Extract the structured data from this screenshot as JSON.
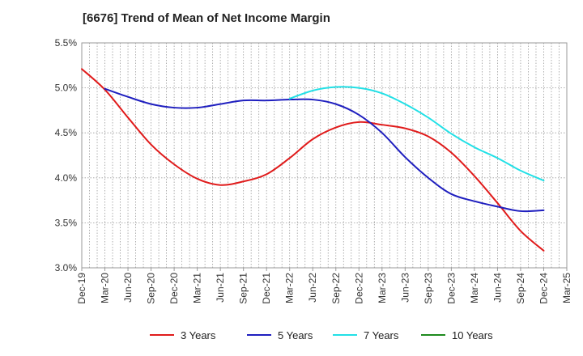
{
  "chart_data": {
    "type": "line",
    "title": "[6676]  Trend of Mean of Net Income Margin",
    "xlabel": "",
    "ylabel": "",
    "x_ticks": [
      "Dec-19",
      "Mar-20",
      "Jun-20",
      "Sep-20",
      "Dec-20",
      "Mar-21",
      "Jun-21",
      "Sep-21",
      "Dec-21",
      "Mar-22",
      "Jun-22",
      "Sep-22",
      "Dec-22",
      "Mar-23",
      "Jun-23",
      "Sep-23",
      "Dec-23",
      "Mar-24",
      "Jun-24",
      "Sep-24",
      "Dec-24",
      "Mar-25"
    ],
    "y_ticks": [
      "3.0%",
      "3.5%",
      "4.0%",
      "4.5%",
      "5.0%",
      "5.5%"
    ],
    "ylim": [
      3.0,
      5.5
    ],
    "grid": true,
    "legend_position": "bottom",
    "series": [
      {
        "name": "3 Years",
        "color": "#e01b1b",
        "points": [
          [
            "Dec-19",
            5.21
          ],
          [
            "Mar-20",
            4.98
          ],
          [
            "Jun-20",
            4.67
          ],
          [
            "Sep-20",
            4.37
          ],
          [
            "Dec-20",
            4.15
          ],
          [
            "Mar-21",
            3.99
          ],
          [
            "Jun-21",
            3.92
          ],
          [
            "Sep-21",
            3.96
          ],
          [
            "Dec-21",
            4.04
          ],
          [
            "Mar-22",
            4.22
          ],
          [
            "Jun-22",
            4.43
          ],
          [
            "Sep-22",
            4.56
          ],
          [
            "Dec-22",
            4.62
          ],
          [
            "Mar-23",
            4.59
          ],
          [
            "Jun-23",
            4.55
          ],
          [
            "Sep-23",
            4.46
          ],
          [
            "Dec-23",
            4.28
          ],
          [
            "Mar-24",
            4.02
          ],
          [
            "Jun-24",
            3.72
          ],
          [
            "Sep-24",
            3.41
          ],
          [
            "Dec-24",
            3.19
          ]
        ]
      },
      {
        "name": "5 Years",
        "color": "#1f1fbf",
        "points": [
          [
            "Mar-20",
            4.99
          ],
          [
            "Jun-20",
            4.9
          ],
          [
            "Sep-20",
            4.82
          ],
          [
            "Dec-20",
            4.78
          ],
          [
            "Mar-21",
            4.78
          ],
          [
            "Jun-21",
            4.82
          ],
          [
            "Sep-21",
            4.86
          ],
          [
            "Dec-21",
            4.86
          ],
          [
            "Mar-22",
            4.87
          ],
          [
            "Jun-22",
            4.87
          ],
          [
            "Sep-22",
            4.82
          ],
          [
            "Dec-22",
            4.7
          ],
          [
            "Mar-23",
            4.5
          ],
          [
            "Jun-23",
            4.23
          ],
          [
            "Sep-23",
            4.0
          ],
          [
            "Dec-23",
            3.82
          ],
          [
            "Mar-24",
            3.74
          ],
          [
            "Jun-24",
            3.68
          ],
          [
            "Sep-24",
            3.63
          ],
          [
            "Dec-24",
            3.64
          ]
        ]
      },
      {
        "name": "7 Years",
        "color": "#22e0e6",
        "points": [
          [
            "Mar-22",
            4.88
          ],
          [
            "Jun-22",
            4.97
          ],
          [
            "Sep-22",
            5.01
          ],
          [
            "Dec-22",
            5.0
          ],
          [
            "Mar-23",
            4.94
          ],
          [
            "Jun-23",
            4.82
          ],
          [
            "Sep-23",
            4.67
          ],
          [
            "Dec-23",
            4.49
          ],
          [
            "Mar-24",
            4.34
          ],
          [
            "Jun-24",
            4.22
          ],
          [
            "Sep-24",
            4.08
          ],
          [
            "Dec-24",
            3.97
          ]
        ]
      },
      {
        "name": "10 Years",
        "color": "#1e8a1e",
        "points": []
      }
    ]
  }
}
